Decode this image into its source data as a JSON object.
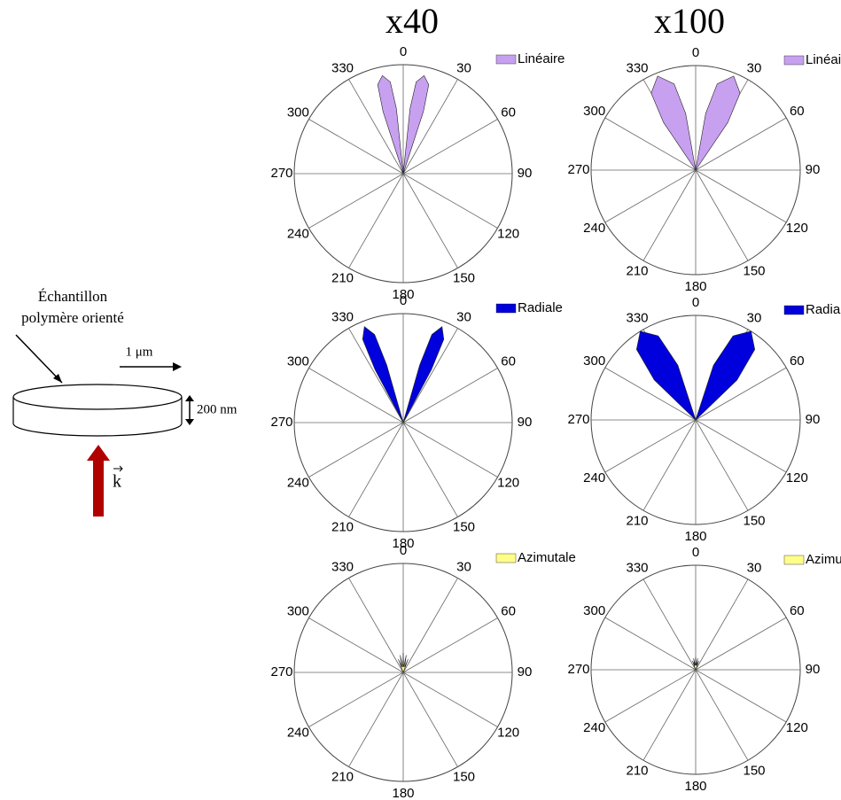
{
  "columns": [
    "x40",
    "x100"
  ],
  "diagram": {
    "sample": [
      "Échantillon",
      "polymère orienté"
    ],
    "length": "1 μm",
    "thickness": "200 nm",
    "wavevector": "k"
  },
  "chart_data": [
    {
      "type": "polar",
      "rlim": [
        0,
        1
      ],
      "thetaticks": [
        0,
        30,
        60,
        90,
        120,
        150,
        180,
        210,
        240,
        270,
        300,
        330
      ],
      "legend": "upper right",
      "series": [
        {
          "name": "Linéaire",
          "color": "#c8a0f0",
          "theta": [
            12,
            6,
            8,
            12,
            16,
            18,
            12,
            null,
            348,
            342,
            344,
            348,
            352,
            354,
            348
          ],
          "r": [
            0,
            0.6,
            0.85,
            0.92,
            0.85,
            0.6,
            0,
            null,
            0,
            0.6,
            0.85,
            0.92,
            0.85,
            0.6,
            0
          ]
        }
      ]
    },
    {
      "type": "polar",
      "rlim": [
        0,
        1
      ],
      "thetaticks": [
        0,
        30,
        60,
        90,
        120,
        150,
        180,
        210,
        240,
        270,
        300,
        330
      ],
      "legend": "upper right",
      "series": [
        {
          "name": "Linéaire",
          "color": "#c8a0f0",
          "theta": [
            22,
            10,
            14,
            22,
            30,
            34,
            22,
            null,
            338,
            326,
            330,
            338,
            346,
            350,
            338
          ],
          "r": [
            0,
            0.55,
            0.85,
            0.97,
            0.85,
            0.55,
            0,
            null,
            0,
            0.55,
            0.85,
            0.97,
            0.85,
            0.55,
            0
          ]
        }
      ]
    },
    {
      "type": "polar",
      "rlim": [
        0,
        1
      ],
      "thetaticks": [
        0,
        30,
        60,
        90,
        120,
        150,
        180,
        210,
        240,
        270,
        300,
        330
      ],
      "legend": "upper right",
      "series": [
        {
          "name": "Radiale",
          "color": "#0000dd",
          "theta": [
            22,
            16,
            18,
            22,
            26,
            28,
            22,
            null,
            338,
            332,
            334,
            338,
            342,
            344,
            338
          ],
          "r": [
            0,
            0.55,
            0.85,
            0.95,
            0.85,
            0.55,
            0,
            null,
            0,
            0.55,
            0.85,
            0.95,
            0.85,
            0.55,
            0
          ]
        }
      ]
    },
    {
      "type": "polar",
      "rlim": [
        0,
        1
      ],
      "thetaticks": [
        0,
        30,
        60,
        90,
        120,
        150,
        180,
        210,
        240,
        270,
        300,
        330
      ],
      "legend": "upper right",
      "series": [
        {
          "name": "Radiale",
          "color": "#0000dd",
          "theta": [
            32,
            18,
            24,
            32,
            40,
            46,
            32,
            null,
            328,
            314,
            320,
            328,
            336,
            342,
            328
          ],
          "r": [
            0,
            0.55,
            0.88,
            1,
            0.88,
            0.55,
            0,
            null,
            0,
            0.55,
            0.88,
            1,
            0.88,
            0.55,
            0
          ]
        }
      ]
    },
    {
      "type": "polar",
      "rlim": [
        0,
        1
      ],
      "thetaticks": [
        0,
        30,
        60,
        90,
        120,
        150,
        180,
        210,
        240,
        270,
        300,
        330
      ],
      "legend": "upper right",
      "series": [
        {
          "name": "Azimutale",
          "color": "#ffff88",
          "theta": [
            0,
            340,
            345,
            350,
            355,
            0,
            5,
            10,
            15,
            20,
            0
          ],
          "r": [
            0,
            0.13,
            0.05,
            0.16,
            0.05,
            0.18,
            0.05,
            0.16,
            0.05,
            0.13,
            0
          ]
        }
      ]
    },
    {
      "type": "polar",
      "rlim": [
        0,
        1
      ],
      "thetaticks": [
        0,
        30,
        60,
        90,
        120,
        150,
        180,
        210,
        240,
        270,
        300,
        330
      ],
      "legend": "upper right",
      "series": [
        {
          "name": "Azimutale",
          "color": "#ffff88",
          "theta": [
            0,
            340,
            345,
            350,
            355,
            0,
            5,
            10,
            15,
            20,
            0
          ],
          "r": [
            0,
            0.09,
            0.04,
            0.11,
            0.04,
            0.12,
            0.04,
            0.11,
            0.04,
            0.09,
            0
          ]
        }
      ]
    }
  ]
}
